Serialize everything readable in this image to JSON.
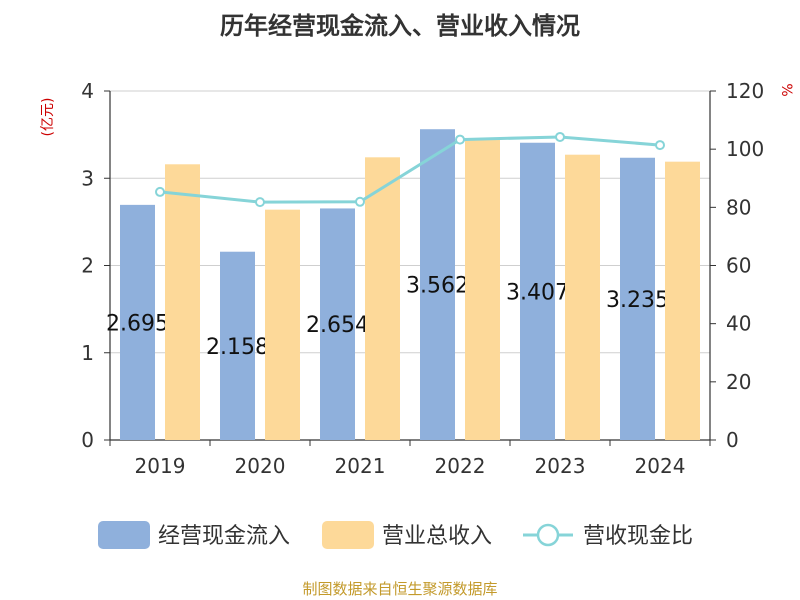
{
  "title": "历年经营现金流入、营业收入情况",
  "source": "制图数据来自恒生聚源数据库",
  "units": {
    "left": "(亿元)",
    "right": "%"
  },
  "chart_data": {
    "type": "bar",
    "categories": [
      "2019",
      "2020",
      "2021",
      "2022",
      "2023",
      "2024"
    ],
    "series": [
      {
        "name": "经营现金流入",
        "type": "bar",
        "axis": "left",
        "color": "#8fb0dc",
        "values": [
          2.695,
          2.158,
          2.654,
          3.562,
          3.407,
          3.235
        ],
        "labels": [
          "2.695",
          "2.158",
          "2.654",
          "3.562",
          "3.407",
          "3.235"
        ]
      },
      {
        "name": "营业总收入",
        "type": "bar",
        "axis": "left",
        "color": "#fdd999",
        "values": [
          3.16,
          2.64,
          3.24,
          3.45,
          3.27,
          3.19
        ]
      },
      {
        "name": "营收现金比",
        "type": "line",
        "axis": "right",
        "color": "#86d4d8",
        "values": [
          85.3,
          81.8,
          81.9,
          103.3,
          104.2,
          101.4
        ]
      }
    ],
    "y_left": {
      "min": 0,
      "max": 4,
      "ticks": [
        "0",
        "1",
        "2",
        "3",
        "4"
      ]
    },
    "y_right": {
      "min": 0,
      "max": 120,
      "ticks": [
        "0",
        "20",
        "40",
        "60",
        "80",
        "100",
        "120"
      ]
    },
    "grid": true,
    "legend": "bottom"
  }
}
